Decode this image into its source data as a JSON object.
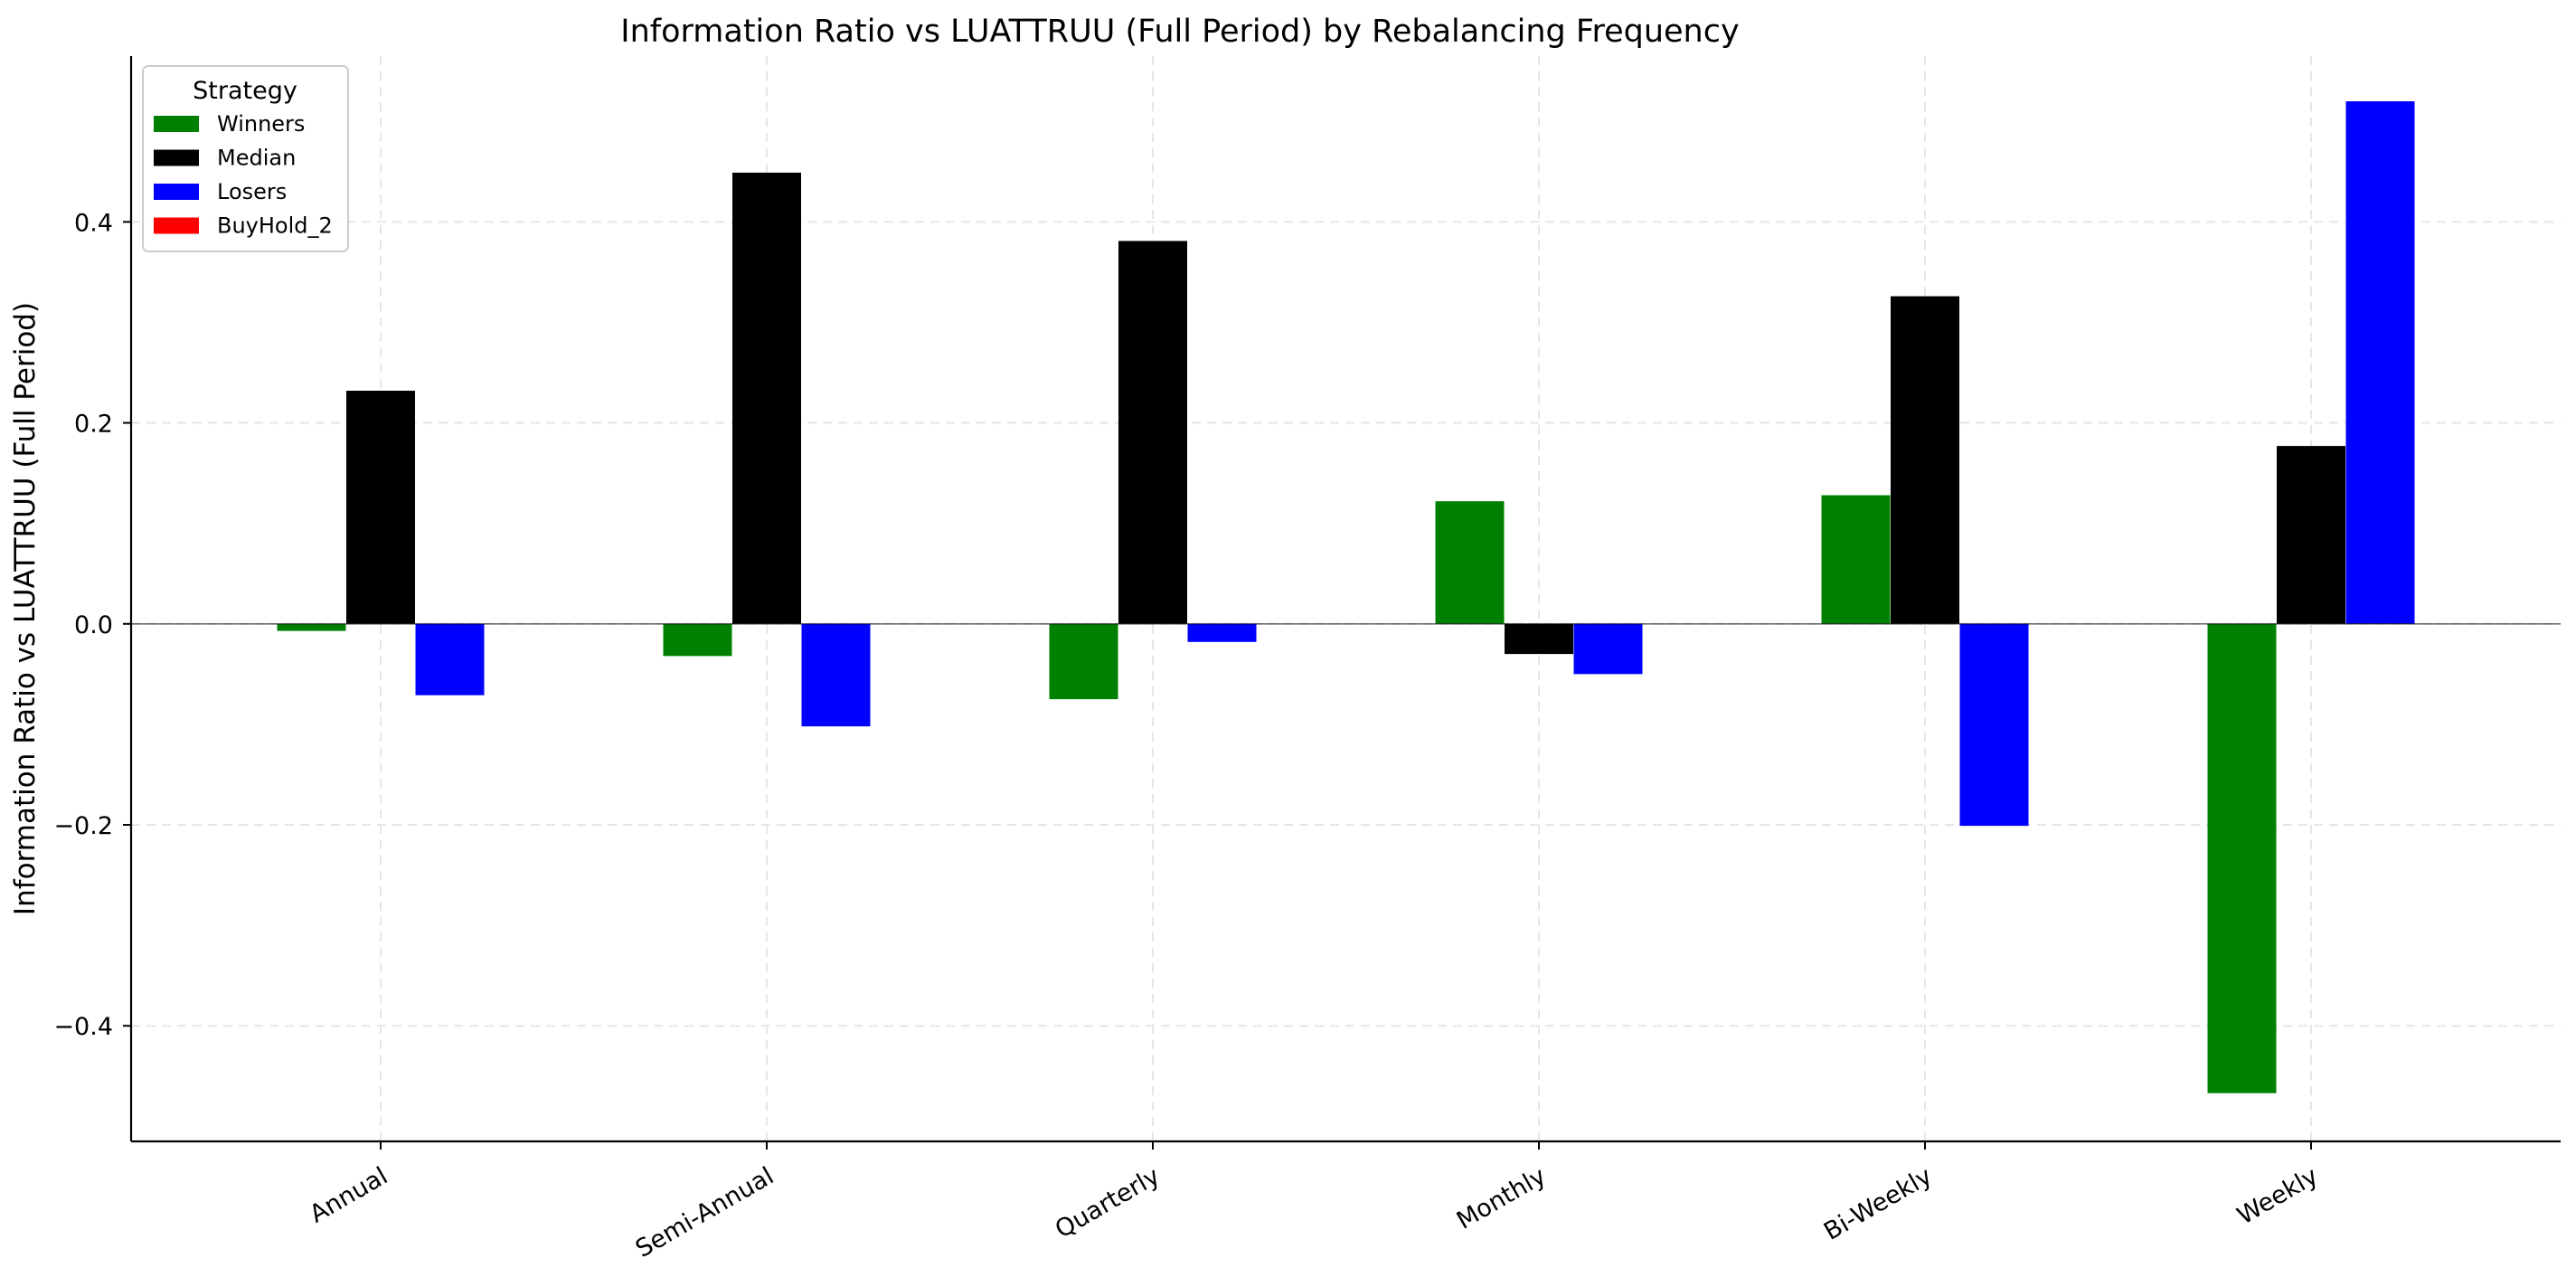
{
  "chart_data": {
    "type": "bar",
    "title": "Information Ratio vs LUATTRUU (Full Period) by Rebalancing Frequency",
    "xlabel": "",
    "ylabel": "Information Ratio vs LUATTRUU (Full Period)",
    "categories": [
      "Annual",
      "Semi-Annual",
      "Quarterly",
      "Monthly",
      "Bi-Weekly",
      "Weekly"
    ],
    "ylim": [
      -0.515,
      0.565
    ],
    "yticks": [
      -0.4,
      -0.2,
      0.0,
      0.2,
      0.4
    ],
    "ytick_labels": [
      "−0.4",
      "−0.2",
      "0.0",
      "0.2",
      "0.4"
    ],
    "grid": true,
    "legend": {
      "title": "Strategy",
      "placement": "upper-left"
    },
    "series": [
      {
        "name": "Winners",
        "color": "#008000",
        "values": [
          -0.007,
          -0.032,
          -0.075,
          0.122,
          0.128,
          -0.467
        ]
      },
      {
        "name": "Median",
        "color": "#000000",
        "values": [
          0.232,
          0.449,
          0.381,
          -0.03,
          0.326,
          0.177
        ]
      },
      {
        "name": "Losers",
        "color": "#0000ff",
        "values": [
          -0.071,
          -0.102,
          -0.018,
          -0.05,
          -0.201,
          0.52
        ]
      },
      {
        "name": "BuyHold_2",
        "color": "#ff0000",
        "values": [
          0,
          0,
          0,
          0,
          0,
          0
        ]
      }
    ]
  }
}
